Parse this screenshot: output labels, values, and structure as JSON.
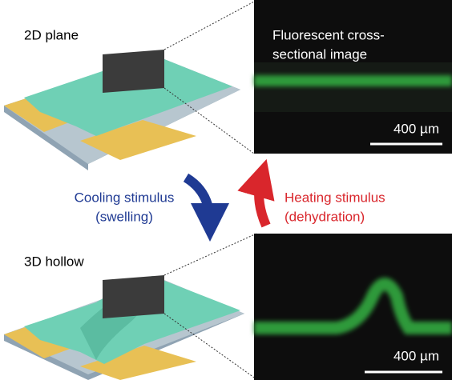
{
  "panels": {
    "top": {
      "label": "2D plane",
      "image_caption": [
        "Fluorescent cross-",
        "sectional image"
      ],
      "scale_bar": "400 µm"
    },
    "bottom": {
      "label": "3D hollow",
      "scale_bar": "400 µm"
    }
  },
  "transitions": {
    "cooling": {
      "title": "Cooling stimulus",
      "note": "(swelling)"
    },
    "heating": {
      "title": "Heating stimulus",
      "note": "(dehydration)"
    }
  }
}
